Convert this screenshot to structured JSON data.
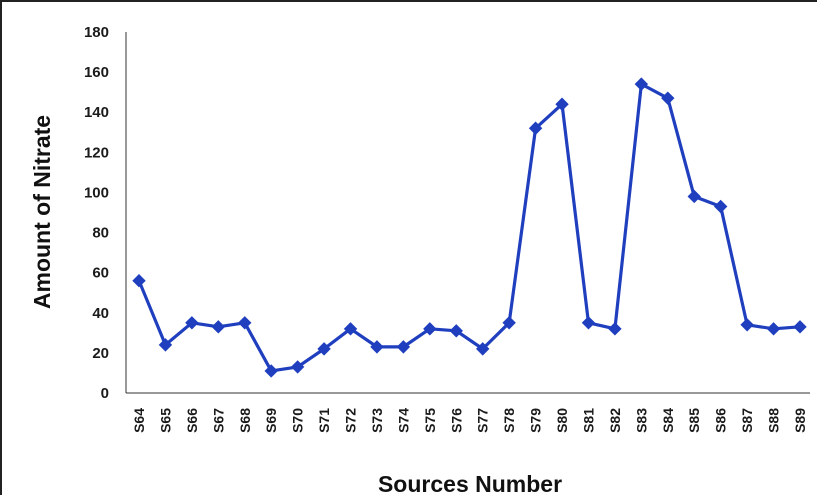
{
  "chart_data": {
    "type": "line",
    "title": "",
    "xlabel": "Sources Number",
    "ylabel": "Amount of Nitrate",
    "ylim": [
      0,
      180
    ],
    "yticks": [
      "0",
      "20",
      "40",
      "60",
      "80",
      "100",
      "120",
      "140",
      "160",
      "180"
    ],
    "grid": false,
    "legend": "none",
    "categories": [
      "S64",
      "S65",
      "S66",
      "S67",
      "S68",
      "S69",
      "S70",
      "S71",
      "S72",
      "S73",
      "S74",
      "S75",
      "S76",
      "S77",
      "S78",
      "S79",
      "S80",
      "S81",
      "S82",
      "S83",
      "S84",
      "S85",
      "S86",
      "S87",
      "S88",
      "S89"
    ],
    "series": [
      {
        "color": "#1f3fbf",
        "marker": "diamond",
        "values": [
          56,
          24,
          35,
          33,
          35,
          11,
          13,
          22,
          32,
          23,
          23,
          32,
          31,
          22,
          35,
          132,
          144,
          35,
          32,
          154,
          147,
          98,
          93,
          34,
          32,
          33
        ]
      }
    ]
  }
}
